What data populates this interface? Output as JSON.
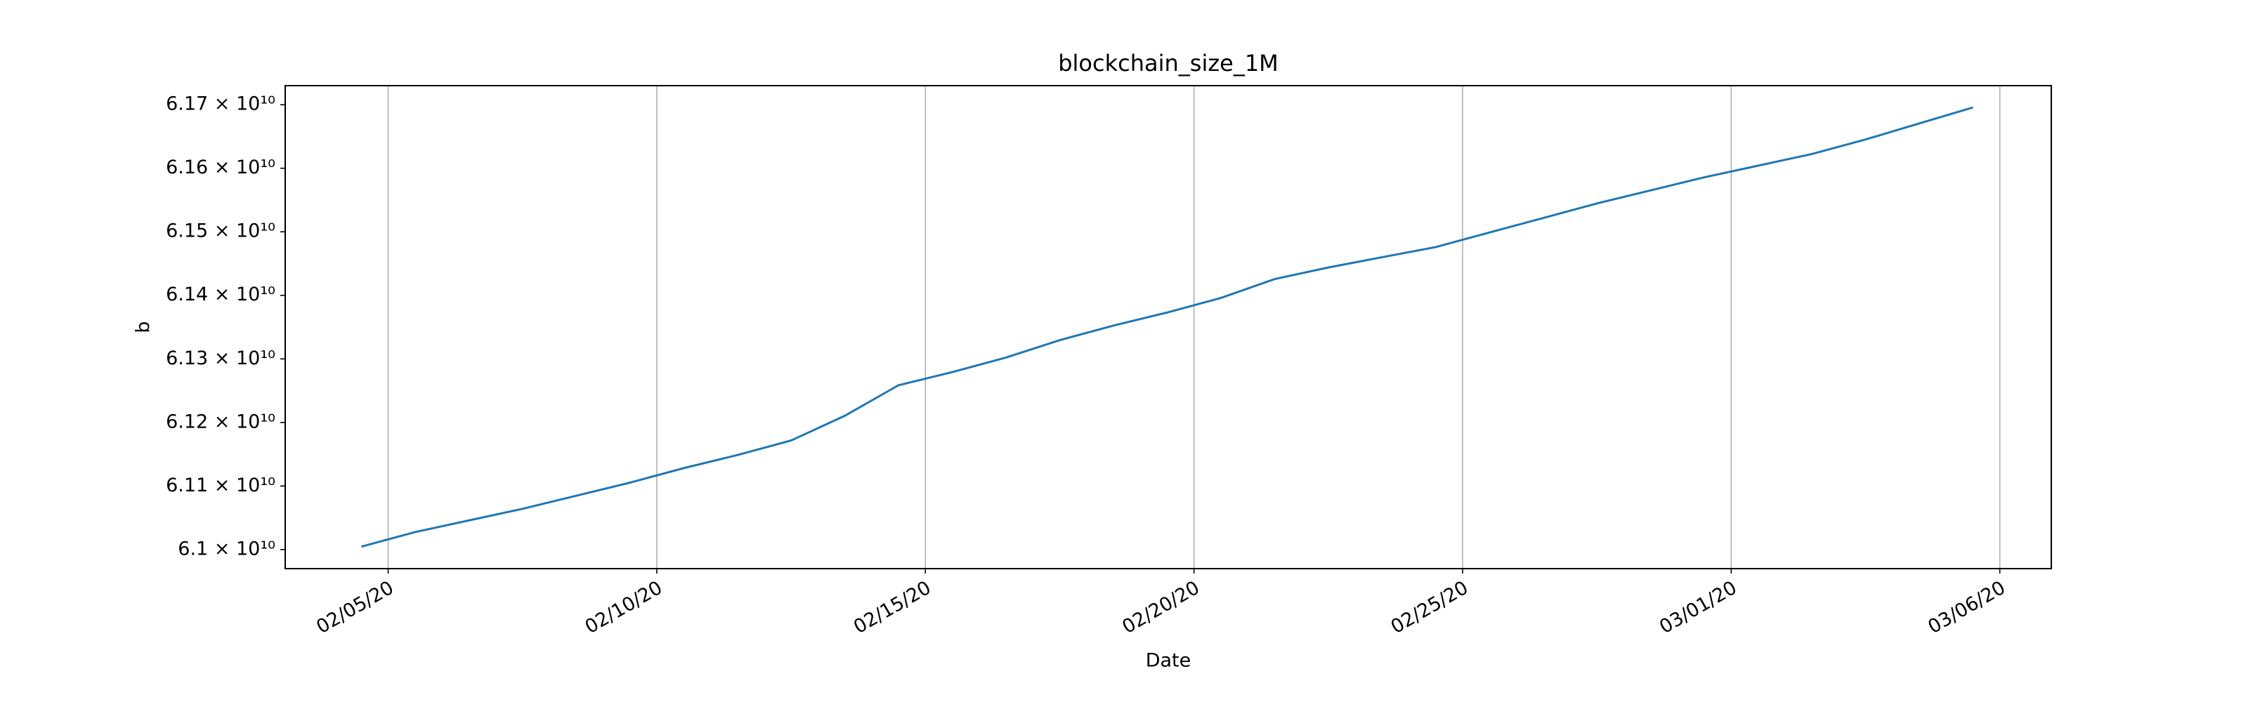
{
  "chart_data": {
    "type": "line",
    "title": "blockchain_size_1M",
    "xlabel": "Date",
    "ylabel": "b",
    "x": [
      "2020-02-04T12:00",
      "2020-02-05T12:00",
      "2020-02-06T12:00",
      "2020-02-07T12:00",
      "2020-02-08T12:00",
      "2020-02-09T12:00",
      "2020-02-10T12:00",
      "2020-02-11T12:00",
      "2020-02-12T12:00",
      "2020-02-13T12:00",
      "2020-02-14T12:00",
      "2020-02-15T12:00",
      "2020-02-16T12:00",
      "2020-02-17T12:00",
      "2020-02-18T12:00",
      "2020-02-19T12:00",
      "2020-02-20T12:00",
      "2020-02-21T12:00",
      "2020-02-22T12:00",
      "2020-02-23T12:00",
      "2020-02-24T12:00",
      "2020-02-25T12:00",
      "2020-02-26T12:00",
      "2020-02-27T12:00",
      "2020-02-28T12:00",
      "2020-02-29T12:00",
      "2020-03-01T12:00",
      "2020-03-02T12:00",
      "2020-03-03T12:00",
      "2020-03-04T12:00",
      "2020-03-05T12:00"
    ],
    "series": [
      {
        "name": "blockchain_size_1M",
        "color": "#1f77b4",
        "values": [
          61004600000,
          61027500000,
          61045800000,
          61064100000,
          61084700000,
          61105300000,
          61128100000,
          61148700000,
          61171600000,
          61210500000,
          61258600000,
          61279200000,
          61302100000,
          61329500000,
          61352400000,
          61373000000,
          61395900000,
          61425600000,
          61443900000,
          61460000000,
          61476000000,
          61498900000,
          61521700000,
          61544600000,
          61565200000,
          61585800000,
          61604100000,
          61622400000,
          61645300000,
          61670500000,
          61695700000
        ]
      }
    ],
    "xlim": [
      "2020-02-03T02:00",
      "2020-03-06T23:00"
    ],
    "xticks": [
      {
        "value": "2020-02-05T00:00",
        "label": "02/05/20"
      },
      {
        "value": "2020-02-10T00:00",
        "label": "02/10/20"
      },
      {
        "value": "2020-02-15T00:00",
        "label": "02/15/20"
      },
      {
        "value": "2020-02-20T00:00",
        "label": "02/20/20"
      },
      {
        "value": "2020-02-25T00:00",
        "label": "02/25/20"
      },
      {
        "value": "2020-03-01T00:00",
        "label": "03/01/20"
      },
      {
        "value": "2020-03-06T00:00",
        "label": "03/06/20"
      }
    ],
    "ylim": [
      60970000000,
      61730000000
    ],
    "yticks": [
      {
        "value": 61000000000,
        "label": "6.1 × 10¹⁰"
      },
      {
        "value": 61100000000,
        "label": "6.11 × 10¹⁰"
      },
      {
        "value": 61200000000,
        "label": "6.12 × 10¹⁰"
      },
      {
        "value": 61300000000,
        "label": "6.13 × 10¹⁰"
      },
      {
        "value": 61400000000,
        "label": "6.14 × 10¹⁰"
      },
      {
        "value": 61500000000,
        "label": "6.15 × 10¹⁰"
      },
      {
        "value": 61600000000,
        "label": "6.16 × 10¹⁰"
      },
      {
        "value": 61700000000,
        "label": "6.17 × 10¹⁰"
      }
    ],
    "xgrid": true
  }
}
